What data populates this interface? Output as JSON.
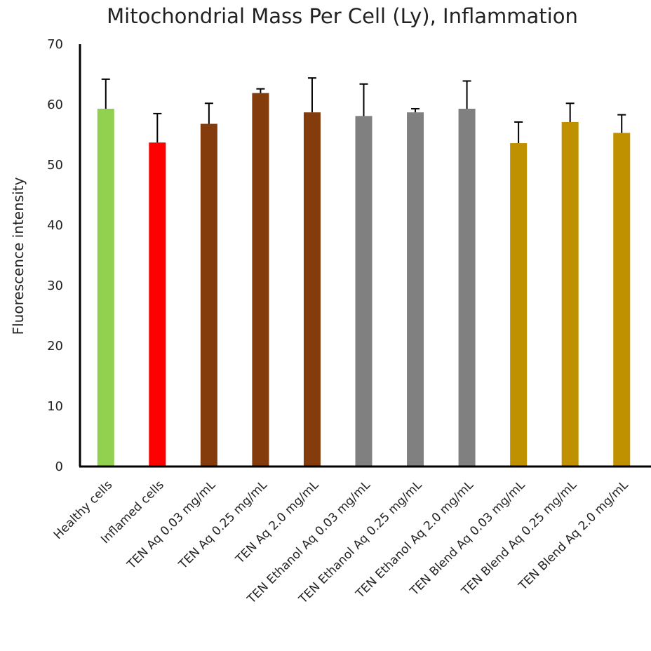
{
  "chart_data": {
    "type": "bar",
    "title": "Mitochondrial Mass Per Cell (Ly), Inflammation",
    "xlabel": "",
    "ylabel": "Fluorescence intensity",
    "ylim": [
      0,
      70
    ],
    "yticks": [
      0,
      10,
      20,
      30,
      40,
      50,
      60,
      70
    ],
    "grid": false,
    "legend": "none",
    "categories": [
      "Healthy cells",
      "Inflamed cells",
      "TEN Aq 0.03 mg/mL",
      "TEN Aq 0.25 mg/mL",
      "TEN Aq 2.0 mg/mL",
      "TEN Ethanol Aq 0.03 mg/mL",
      "TEN Ethanol Aq 0.25 mg/mL",
      "TEN Ethanol Aq 2.0 mg/mL",
      "TEN Blend Aq 0.03 mg/mL",
      "TEN Blend Aq 0.25 mg/mL",
      "TEN Blend Aq 2.0 mg/mL"
    ],
    "values": [
      59.3,
      53.7,
      56.8,
      61.9,
      58.7,
      58.1,
      58.7,
      59.3,
      53.6,
      57.1,
      55.3
    ],
    "errors": [
      4.9,
      4.8,
      3.4,
      0.7,
      5.7,
      5.3,
      0.6,
      4.6,
      3.5,
      3.1,
      3.0
    ],
    "colors": [
      "#92d050",
      "#ff0000",
      "#843c0c",
      "#843c0c",
      "#843c0c",
      "#808080",
      "#808080",
      "#808080",
      "#bf9000",
      "#bf9000",
      "#bf9000"
    ]
  }
}
